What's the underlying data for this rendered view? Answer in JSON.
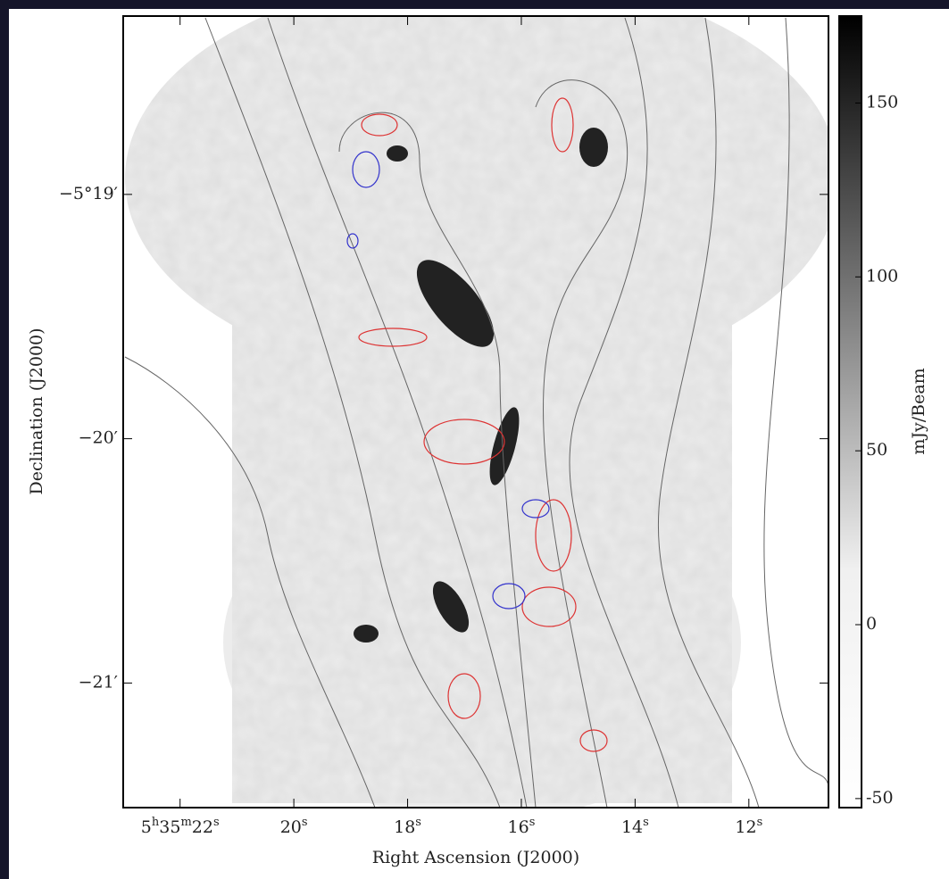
{
  "chart_data": {
    "type": "image",
    "x_label": "Right Ascension (J2000)",
    "y_label": "Declination (J2000)",
    "xlim": [
      23.0,
      10.6
    ],
    "xticks": [
      {
        "value": 22,
        "label": [
          "5",
          "h",
          "35",
          "m",
          "22",
          "s"
        ]
      },
      {
        "value": 20,
        "label": [
          "20",
          "s"
        ]
      },
      {
        "value": 18,
        "label": [
          "18",
          "s"
        ]
      },
      {
        "value": 16,
        "label": [
          "16",
          "s"
        ]
      },
      {
        "value": 14,
        "label": [
          "14",
          "s"
        ]
      },
      {
        "value": 12,
        "label": [
          "12",
          "s"
        ]
      }
    ],
    "ylim": [
      -21.51,
      -18.27
    ],
    "yticks": [
      {
        "value": -19,
        "label": "−5°19′"
      },
      {
        "value": -20,
        "label": "−20′"
      },
      {
        "value": -21,
        "label": "−21′"
      }
    ],
    "colorbar": {
      "label": "mJy/Beam",
      "lim": [
        -52.6,
        175
      ],
      "ticks": [
        -50,
        0,
        50,
        100,
        150
      ]
    }
  }
}
